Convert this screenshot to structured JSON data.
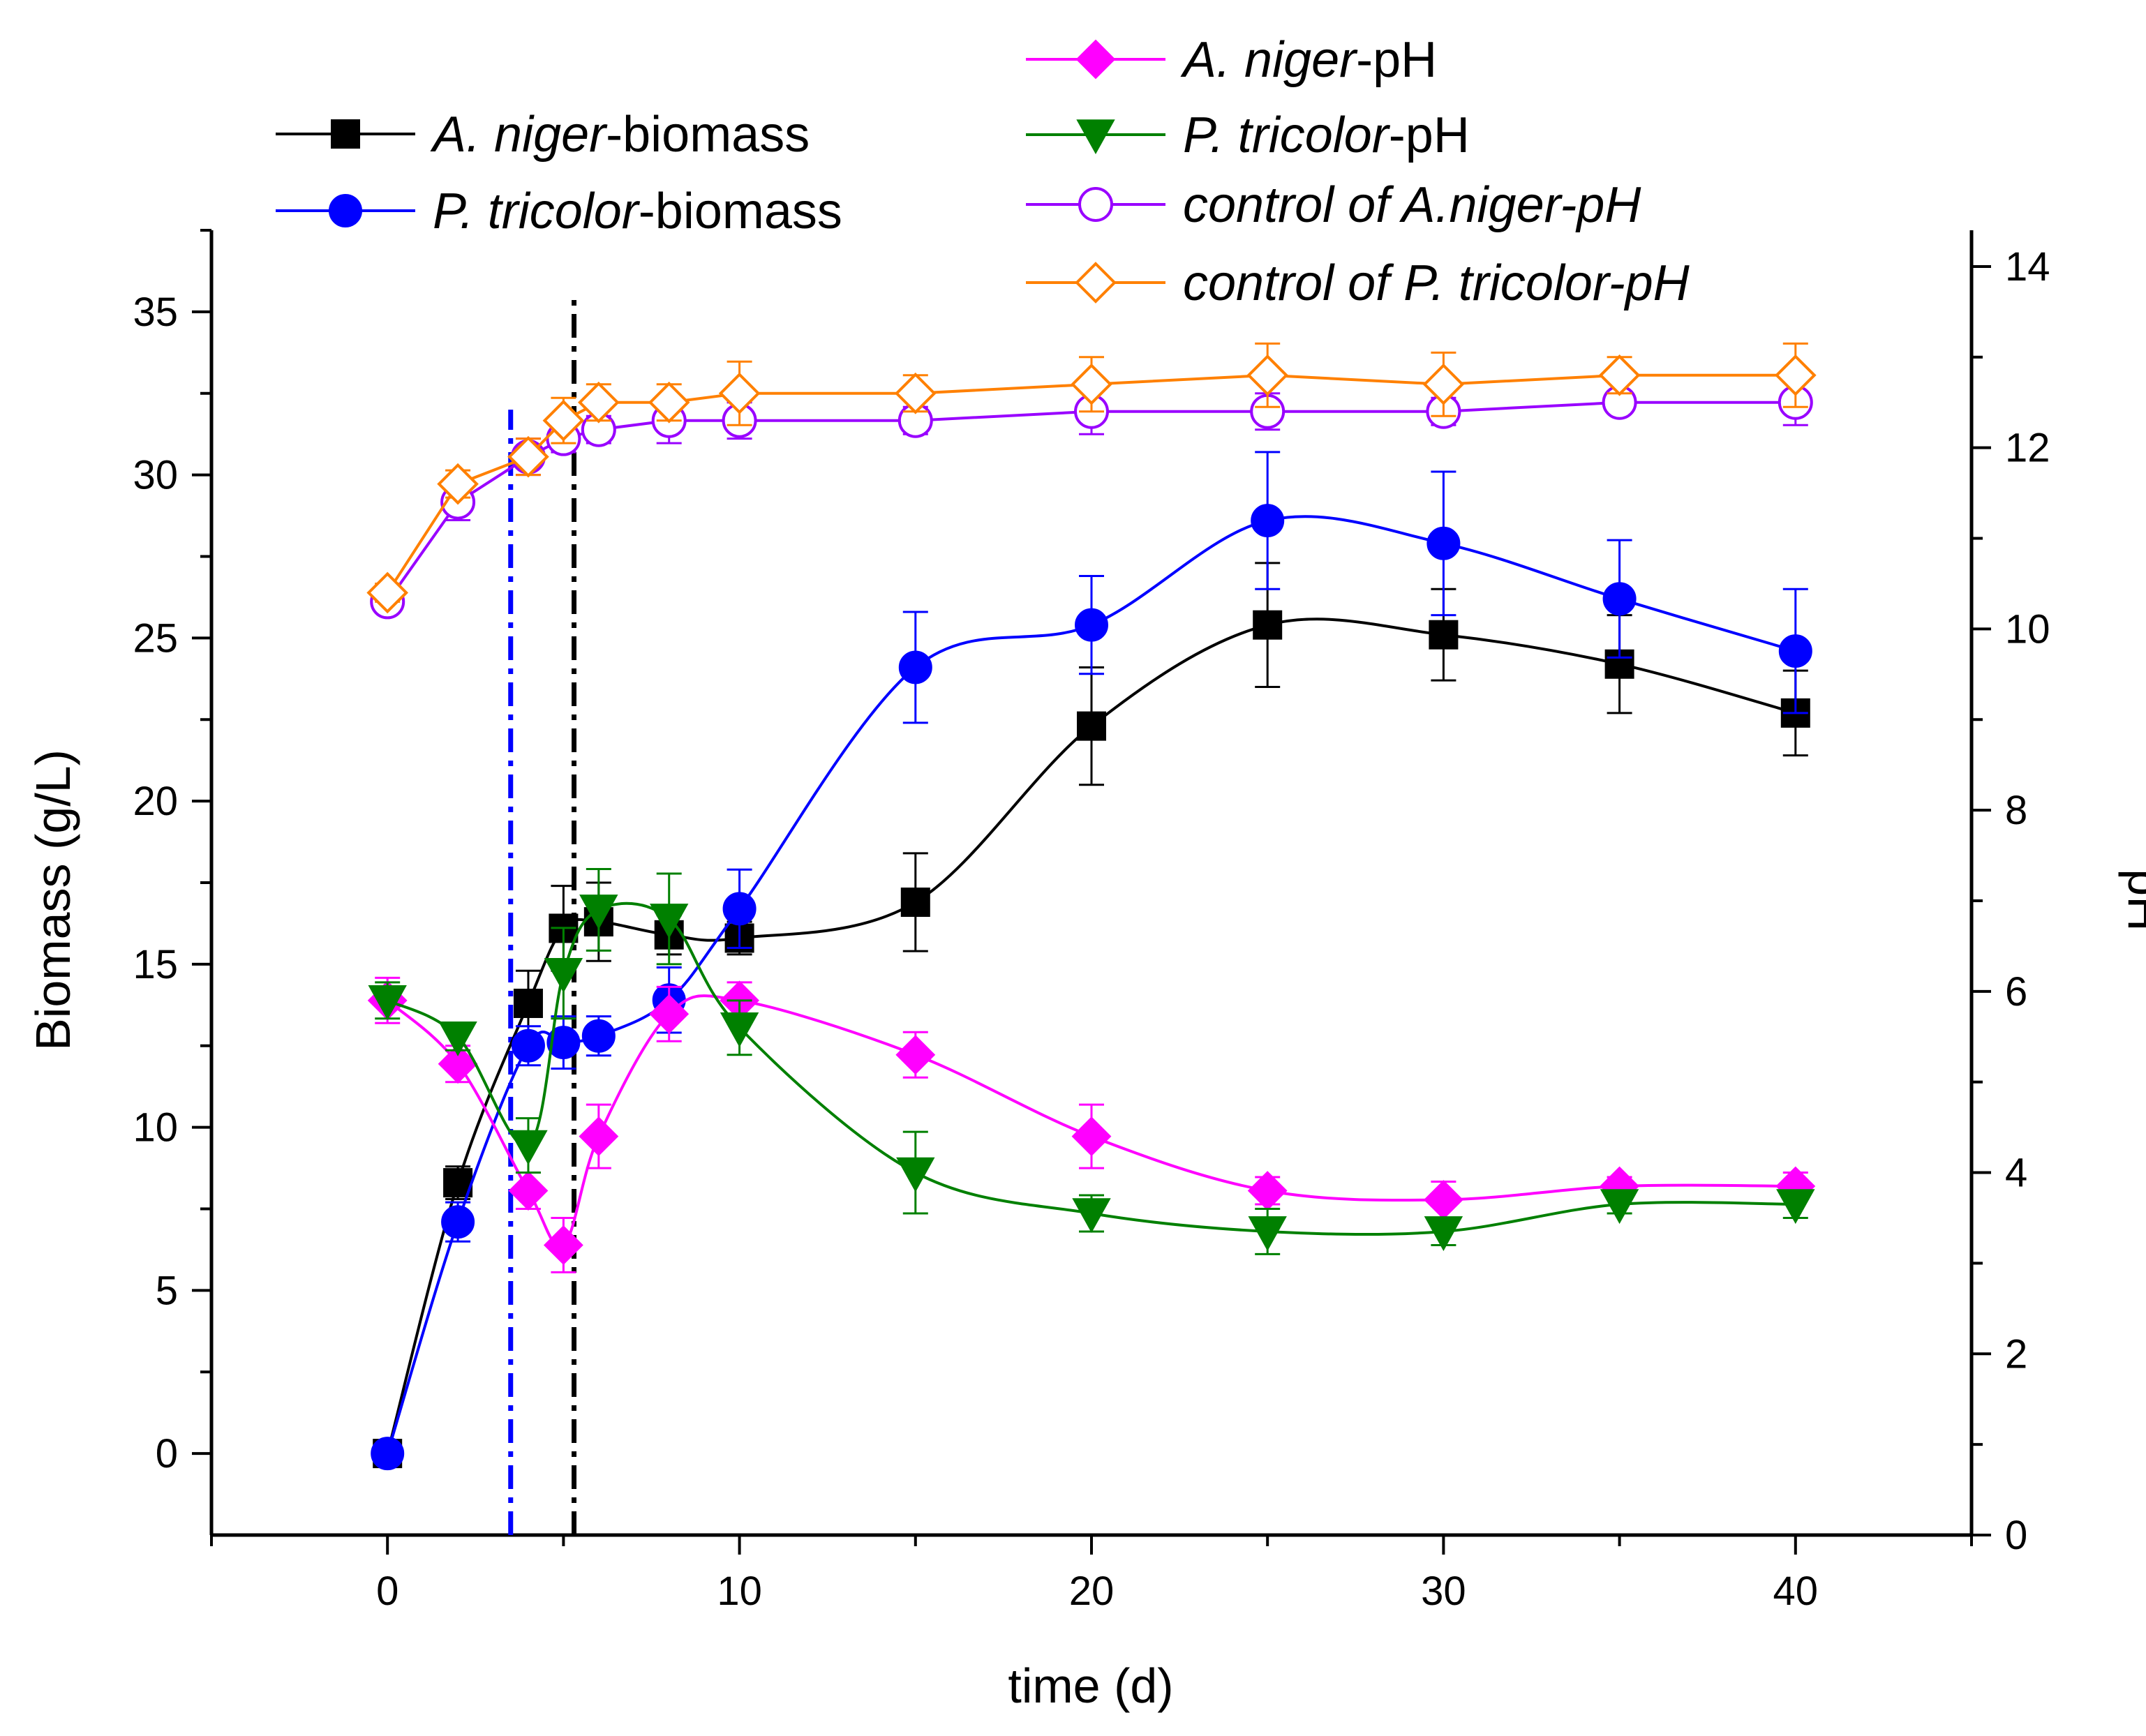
{
  "chart_data": {
    "type": "line",
    "title": "",
    "xlabel": "time (d)",
    "ylabel_left": "Biomass (g/L)",
    "ylabel_right": "pH",
    "xlim": [
      -5,
      45
    ],
    "ylim_left": [
      -2.5,
      37.5
    ],
    "ylim_right": [
      0,
      14.4
    ],
    "x_ticks": [
      0,
      10,
      20,
      30,
      40
    ],
    "y_left_ticks": [
      0,
      5,
      10,
      15,
      20,
      25,
      30,
      35
    ],
    "y_right_ticks": [
      0,
      2,
      4,
      6,
      8,
      10,
      12,
      14
    ],
    "grid": false,
    "vertical_lines": [
      {
        "x": 3.5,
        "color": "#0000ff",
        "style": "dash-dot"
      },
      {
        "x": 5.3,
        "color": "#000000",
        "style": "dash-dot"
      }
    ],
    "series": [
      {
        "name_italic": "A. niger",
        "name_rest": "-biomass",
        "axis": "left",
        "color": "#000000",
        "marker": "square",
        "filled": true,
        "smooth": true,
        "x": [
          0,
          2,
          4,
          5,
          6,
          8,
          10,
          15,
          20,
          25,
          30,
          35,
          40
        ],
        "y": [
          0,
          8.3,
          13.8,
          16.1,
          16.3,
          15.9,
          15.8,
          16.9,
          22.3,
          25.4,
          25.1,
          24.2,
          22.7
        ],
        "err": [
          0.2,
          0.5,
          1.0,
          1.3,
          1.2,
          0.6,
          0.5,
          1.5,
          1.8,
          1.9,
          1.4,
          1.5,
          1.3
        ]
      },
      {
        "name_italic": "P. tricolor",
        "name_rest": "-biomass",
        "axis": "left",
        "color": "#0000ff",
        "marker": "circle",
        "filled": true,
        "smooth": true,
        "x": [
          0,
          2,
          4,
          5,
          6,
          8,
          10,
          15,
          20,
          25,
          30,
          35,
          40
        ],
        "y": [
          0,
          7.1,
          12.5,
          12.6,
          12.8,
          13.9,
          16.7,
          24.1,
          25.4,
          28.6,
          27.9,
          26.2,
          24.6
        ],
        "err": [
          0.2,
          0.6,
          0.6,
          0.8,
          0.6,
          1.0,
          1.2,
          1.7,
          1.5,
          2.1,
          2.2,
          1.8,
          1.9
        ]
      },
      {
        "name_italic": "A. niger",
        "name_rest": "-pH",
        "axis": "right",
        "color": "#ff00ff",
        "marker": "diamond",
        "filled": true,
        "smooth": true,
        "x": [
          0,
          2,
          4,
          5,
          6,
          8,
          10,
          15,
          20,
          25,
          30,
          35,
          40
        ],
        "y": [
          5.9,
          5.2,
          3.8,
          3.2,
          4.4,
          5.75,
          5.9,
          5.3,
          4.4,
          3.8,
          3.7,
          3.85,
          3.85
        ],
        "err": [
          0.25,
          0.2,
          0.2,
          0.3,
          0.35,
          0.3,
          0.2,
          0.25,
          0.35,
          0.15,
          0.2,
          0.1,
          0.15
        ]
      },
      {
        "name_italic": "P. tricolor",
        "name_rest": "-pH",
        "axis": "right",
        "color": "#008000",
        "marker": "triangle-down",
        "filled": true,
        "smooth": true,
        "x": [
          0,
          2,
          4,
          5,
          6,
          8,
          10,
          15,
          20,
          25,
          30,
          35,
          40
        ],
        "y": [
          5.9,
          5.5,
          4.3,
          6.2,
          6.9,
          6.8,
          5.6,
          4.0,
          3.55,
          3.35,
          3.35,
          3.65,
          3.65
        ],
        "err": [
          0.2,
          0.15,
          0.3,
          0.5,
          0.45,
          0.5,
          0.3,
          0.45,
          0.2,
          0.25,
          0.15,
          0.1,
          0.15
        ]
      },
      {
        "name_italic": "control of A.niger-pH",
        "name_rest": "",
        "axis": "right",
        "color": "#9900ff",
        "marker": "circle",
        "filled": false,
        "smooth": false,
        "x": [
          0,
          2,
          4,
          5,
          6,
          8,
          10,
          15,
          20,
          25,
          30,
          35,
          40
        ],
        "y": [
          10.3,
          11.4,
          11.9,
          12.1,
          12.2,
          12.3,
          12.3,
          12.3,
          12.4,
          12.4,
          12.4,
          12.5,
          12.5
        ],
        "err": [
          0.1,
          0.2,
          0.2,
          0.15,
          0.15,
          0.25,
          0.2,
          0.15,
          0.25,
          0.2,
          0.15,
          0.1,
          0.25
        ]
      },
      {
        "name_italic": "control of P. tricolor-pH",
        "name_rest": "",
        "axis": "right",
        "color": "#ff8000",
        "marker": "diamond",
        "filled": false,
        "smooth": false,
        "x": [
          0,
          2,
          4,
          5,
          6,
          8,
          10,
          15,
          20,
          25,
          30,
          35,
          40
        ],
        "y": [
          10.4,
          11.6,
          11.9,
          12.3,
          12.5,
          12.5,
          12.6,
          12.6,
          12.7,
          12.8,
          12.7,
          12.8,
          12.8
        ],
        "err": [
          0.1,
          0.15,
          0.2,
          0.25,
          0.2,
          0.2,
          0.35,
          0.2,
          0.3,
          0.35,
          0.35,
          0.2,
          0.35
        ]
      }
    ]
  }
}
